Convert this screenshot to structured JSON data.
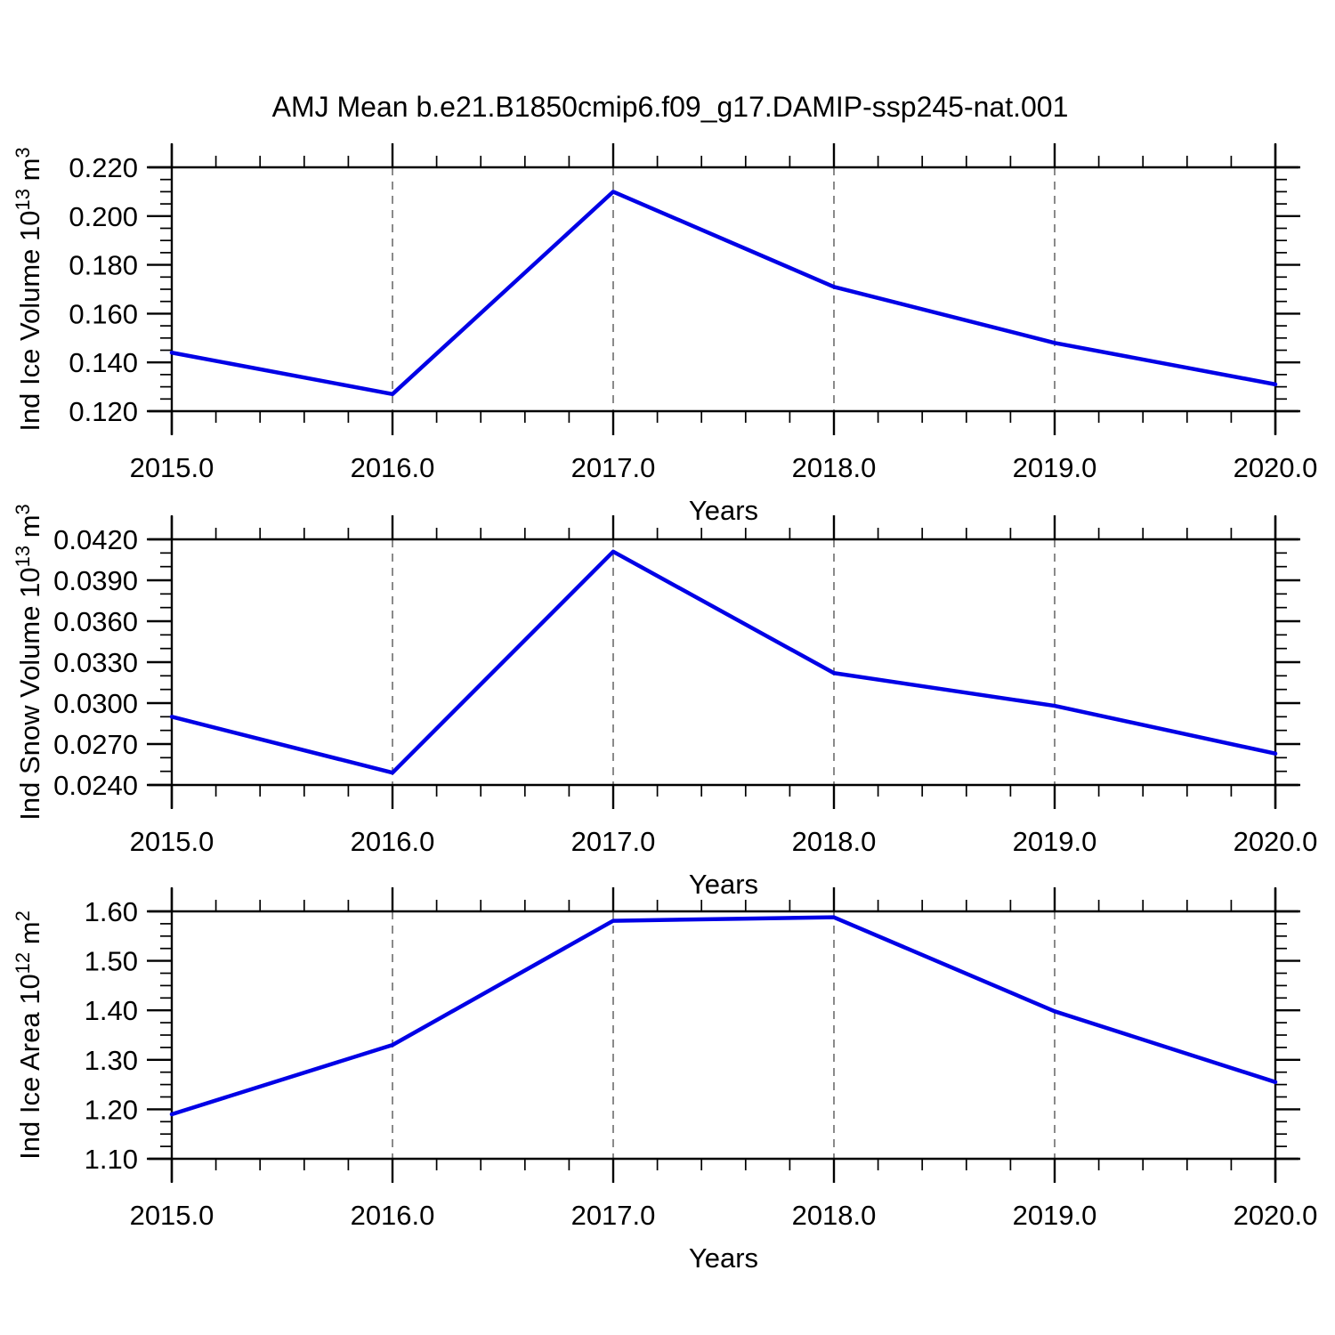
{
  "title": "AMJ Mean b.e21.B1850cmip6.f09_g17.DAMIP-ssp245-nat.001",
  "colors": {
    "line": "#0000E6",
    "axis": "#000000",
    "grid": "#7d7d7d",
    "background": "#ffffff"
  },
  "chart_data": [
    {
      "type": "line",
      "x": [
        2015,
        2016,
        2017,
        2018,
        2019,
        2020
      ],
      "values": [
        0.144,
        0.127,
        0.21,
        0.171,
        0.148,
        0.131
      ],
      "xlabel": "Years",
      "ylabel_parts": [
        "Ind Ice Volume 10",
        "13",
        " m",
        "3"
      ],
      "xlim": [
        2015,
        2020
      ],
      "ylim": [
        0.12,
        0.22
      ],
      "yticks": [
        0.22,
        0.2,
        0.18,
        0.16,
        0.14,
        0.12
      ],
      "ytick_labels": [
        "0.220",
        "0.200",
        "0.180",
        "0.160",
        "0.140",
        "0.120"
      ],
      "y_minor_step": 0.005,
      "xticks": [
        2015,
        2016,
        2017,
        2018,
        2019,
        2020
      ],
      "xtick_labels": [
        "2015.0",
        "2016.0",
        "2017.0",
        "2018.0",
        "2019.0",
        "2020.0"
      ],
      "x_minor_step": 0.2,
      "grid_x": [
        2016,
        2017,
        2018,
        2019
      ],
      "grid": "vertical-dashed",
      "legend": "none"
    },
    {
      "type": "line",
      "x": [
        2015,
        2016,
        2017,
        2018,
        2019,
        2020
      ],
      "values": [
        0.029,
        0.0249,
        0.0411,
        0.0322,
        0.0298,
        0.0263
      ],
      "xlabel": "Years",
      "ylabel_parts": [
        "Ind Snow Volume 10",
        "13",
        " m",
        "3"
      ],
      "xlim": [
        2015,
        2020
      ],
      "ylim": [
        0.024,
        0.042
      ],
      "yticks": [
        0.042,
        0.039,
        0.036,
        0.033,
        0.03,
        0.027,
        0.024
      ],
      "ytick_labels": [
        "0.0420",
        "0.0390",
        "0.0360",
        "0.0330",
        "0.0300",
        "0.0270",
        "0.0240"
      ],
      "y_minor_step": 0.001,
      "xticks": [
        2015,
        2016,
        2017,
        2018,
        2019,
        2020
      ],
      "xtick_labels": [
        "2015.0",
        "2016.0",
        "2017.0",
        "2018.0",
        "2019.0",
        "2020.0"
      ],
      "x_minor_step": 0.2,
      "grid_x": [
        2016,
        2017,
        2018,
        2019
      ],
      "grid": "vertical-dashed",
      "legend": "none"
    },
    {
      "type": "line",
      "x": [
        2015,
        2016,
        2017,
        2018,
        2019,
        2020
      ],
      "values": [
        1.19,
        1.33,
        1.581,
        1.588,
        1.398,
        1.255
      ],
      "xlabel": "Years",
      "ylabel_parts": [
        "Ind Ice Area 10",
        "12",
        " m",
        "2"
      ],
      "xlim": [
        2015,
        2020
      ],
      "ylim": [
        1.1,
        1.6
      ],
      "yticks": [
        1.6,
        1.5,
        1.4,
        1.3,
        1.2,
        1.1
      ],
      "ytick_labels": [
        "1.60",
        "1.50",
        "1.40",
        "1.30",
        "1.20",
        "1.10"
      ],
      "y_minor_step": 0.025,
      "xticks": [
        2015,
        2016,
        2017,
        2018,
        2019,
        2020
      ],
      "xtick_labels": [
        "2015.0",
        "2016.0",
        "2017.0",
        "2018.0",
        "2019.0",
        "2020.0"
      ],
      "x_minor_step": 0.2,
      "grid_x": [
        2016,
        2017,
        2018,
        2019
      ],
      "grid": "vertical-dashed",
      "legend": "none"
    }
  ]
}
